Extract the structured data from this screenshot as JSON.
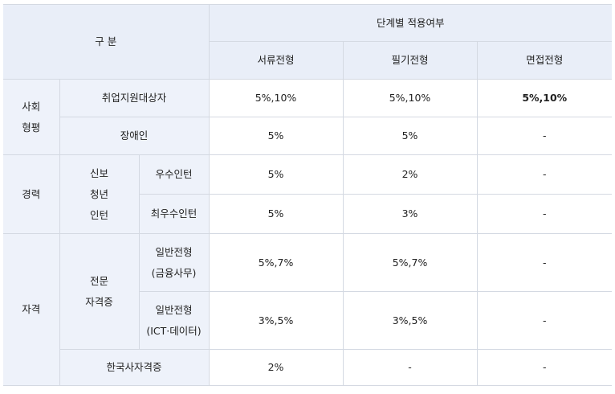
{
  "header": {
    "category": "구 분",
    "stage_group": "단계별 적용여부",
    "stages": [
      "서류전형",
      "필기전형",
      "면접전형"
    ]
  },
  "sections": {
    "social": {
      "label_line1": "사회",
      "label_line2": "형평",
      "rows": [
        {
          "label": "취업지원대상자",
          "doc": "5%,10%",
          "written": "5%,10%",
          "interview": "5%,10%"
        },
        {
          "label": "장애인",
          "doc": "5%",
          "written": "5%",
          "interview": "-"
        }
      ]
    },
    "career": {
      "label": "경력",
      "sub_line1": "신보",
      "sub_line2": "청년",
      "sub_line3": "인턴",
      "rows": [
        {
          "label": "우수인턴",
          "doc": "5%",
          "written": "2%",
          "interview": "-"
        },
        {
          "label": "최우수인턴",
          "doc": "5%",
          "written": "3%",
          "interview": "-"
        }
      ]
    },
    "qualification": {
      "label": "자격",
      "sub_line1": "전문",
      "sub_line2": "자격증",
      "rows": [
        {
          "label_line1": "일반전형",
          "label_line2": "(금융사무)",
          "doc": "5%,7%",
          "written": "5%,7%",
          "interview": "-"
        },
        {
          "label_line1": "일반전형",
          "label_line2": "(ICT·데이터)",
          "doc": "3%,5%",
          "written": "3%,5%",
          "interview": "-"
        }
      ],
      "korean_history": {
        "label": "한국사자격증",
        "doc": "2%",
        "written": "-",
        "interview": "-"
      }
    }
  }
}
